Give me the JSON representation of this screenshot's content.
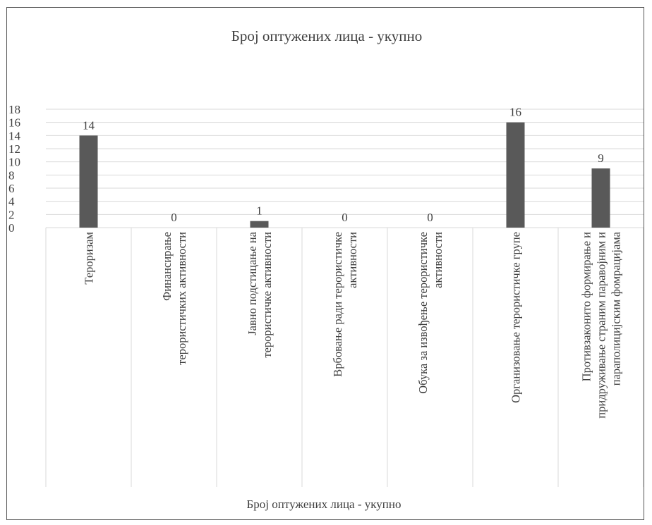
{
  "chart_data": {
    "type": "bar",
    "title": "Број оптужених лица - укупно",
    "categories": [
      [
        "Тероризам"
      ],
      [
        "Финансирање",
        "терористичких активности"
      ],
      [
        "Јавно подстицање на",
        "терористичке активности"
      ],
      [
        "Врбовање ради терористичке",
        "активности"
      ],
      [
        "Обука за извођење терористичке",
        "активности"
      ],
      [
        "Организовање терористичке групе"
      ],
      [
        "Противзаконито формирање и",
        "придруживање страним паравојним и",
        "параполицијским  фомрацијама"
      ]
    ],
    "series": [
      {
        "name": "Број оптужених лица - укупно",
        "values": [
          14,
          0,
          1,
          0,
          0,
          16,
          9
        ]
      }
    ],
    "ylim": [
      0,
      18
    ],
    "yticks": [
      0,
      2,
      4,
      6,
      8,
      10,
      12,
      14,
      16,
      18
    ],
    "grid": true,
    "legend": "bottom",
    "bar_color": "#595959",
    "grid_color": "#d9d9d9",
    "axis_color": "#d9d9d9"
  }
}
